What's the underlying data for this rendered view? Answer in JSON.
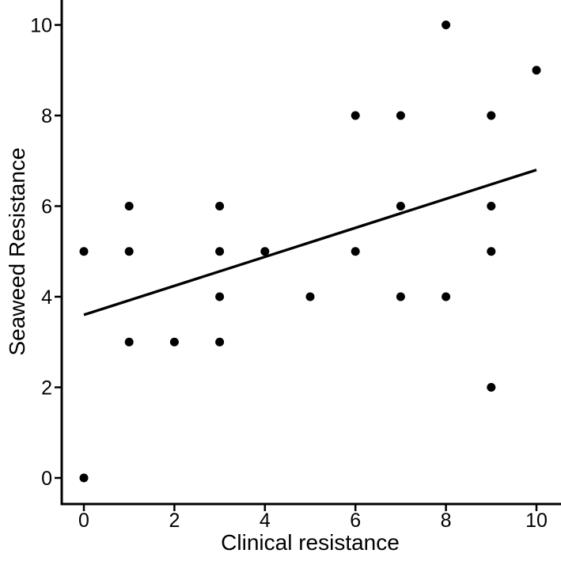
{
  "chart_data": {
    "type": "scatter",
    "title": "",
    "xlabel": "Clinical resistance",
    "ylabel": "Seaweed Resistance",
    "xlim": [
      0,
      10
    ],
    "ylim": [
      0,
      10
    ],
    "x_ticks": [
      0,
      2,
      4,
      6,
      8,
      10
    ],
    "y_ticks": [
      0,
      2,
      4,
      6,
      8,
      10
    ],
    "grid": false,
    "legend": false,
    "point_color": "#000000",
    "line_color": "#000000",
    "axis_color": "#000000",
    "background_color": "#ffffff",
    "points": [
      [
        0,
        0
      ],
      [
        0,
        5
      ],
      [
        1,
        3
      ],
      [
        1,
        5
      ],
      [
        1,
        6
      ],
      [
        2,
        3
      ],
      [
        3,
        3
      ],
      [
        3,
        4
      ],
      [
        3,
        5
      ],
      [
        3,
        6
      ],
      [
        4,
        5
      ],
      [
        5,
        4
      ],
      [
        6,
        5
      ],
      [
        6,
        8
      ],
      [
        7,
        4
      ],
      [
        7,
        6
      ],
      [
        7,
        8
      ],
      [
        8,
        4
      ],
      [
        8,
        10
      ],
      [
        9,
        2
      ],
      [
        9,
        5
      ],
      [
        9,
        6
      ],
      [
        9,
        8
      ],
      [
        10,
        9
      ]
    ],
    "regression_line": {
      "x": [
        0,
        10
      ],
      "y": [
        3.6,
        6.8
      ]
    }
  }
}
